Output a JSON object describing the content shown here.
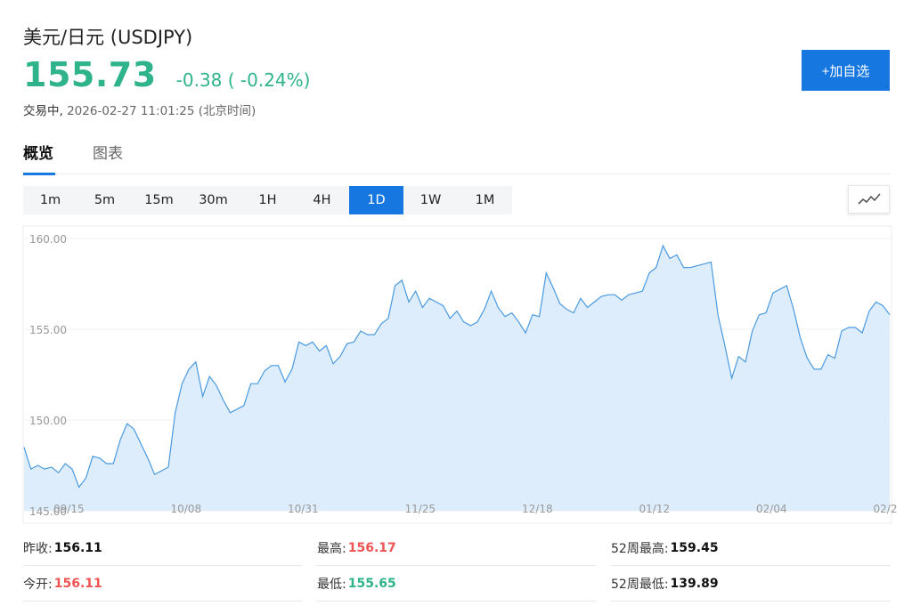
{
  "header": {
    "title": "美元/日元 (USDJPY)",
    "price": "155.73",
    "change": "-0.38 ( -0.24%)",
    "state": "交易中,",
    "timestamp": "2026-02-27 11:01:25 (北京时间)"
  },
  "actions": {
    "add_watchlist": "+加自选"
  },
  "tabs": [
    {
      "label": "概览",
      "active": true
    },
    {
      "label": "图表",
      "active": false
    }
  ],
  "periods": [
    {
      "label": "1m",
      "active": false
    },
    {
      "label": "5m",
      "active": false
    },
    {
      "label": "15m",
      "active": false
    },
    {
      "label": "30m",
      "active": false
    },
    {
      "label": "1H",
      "active": false
    },
    {
      "label": "4H",
      "active": false
    },
    {
      "label": "1D",
      "active": true
    },
    {
      "label": "1W",
      "active": false
    },
    {
      "label": "1M",
      "active": false
    }
  ],
  "chart_toggle_icon": "line-chart-icon",
  "colors": {
    "accent": "#1677e0",
    "down": "#2fb38a",
    "up": "#ee5454",
    "line": "#4a9ae0",
    "fill": "#deedfb"
  },
  "chart_data": {
    "type": "area",
    "ylim": [
      145,
      160
    ],
    "y_ticks": [
      "160.00",
      "155.00",
      "150.00",
      "145.00"
    ],
    "x_ticks": [
      "09/15",
      "10/08",
      "10/31",
      "11/25",
      "12/18",
      "01/12",
      "02/04",
      "02/2"
    ],
    "values": [
      148.5,
      147.3,
      147.5,
      147.3,
      147.4,
      147.1,
      147.6,
      147.3,
      146.3,
      146.8,
      148.0,
      147.9,
      147.6,
      147.6,
      148.9,
      149.8,
      149.5,
      148.7,
      147.9,
      147.0,
      147.2,
      147.4,
      150.4,
      152.0,
      152.8,
      153.2,
      151.3,
      152.4,
      151.9,
      151.1,
      150.4,
      150.6,
      150.8,
      152.0,
      152.0,
      152.7,
      153.0,
      153.0,
      152.1,
      152.8,
      154.3,
      154.1,
      154.3,
      153.8,
      154.1,
      153.1,
      153.5,
      154.2,
      154.3,
      154.9,
      154.7,
      154.7,
      155.3,
      155.6,
      157.4,
      157.7,
      156.5,
      157.1,
      156.2,
      156.7,
      156.5,
      156.3,
      155.6,
      156.0,
      155.4,
      155.2,
      155.4,
      156.1,
      157.1,
      156.2,
      155.7,
      155.9,
      155.4,
      154.8,
      155.8,
      155.7,
      158.1,
      157.3,
      156.4,
      156.1,
      155.9,
      156.7,
      156.2,
      156.5,
      156.8,
      156.9,
      156.9,
      156.6,
      156.9,
      157.0,
      157.1,
      158.1,
      158.4,
      159.6,
      158.9,
      159.1,
      158.4,
      158.4,
      158.5,
      158.6,
      158.7,
      155.8,
      154.1,
      152.3,
      153.5,
      153.2,
      154.9,
      155.8,
      155.9,
      157.0,
      157.2,
      157.4,
      156.1,
      154.5,
      153.4,
      152.8,
      152.8,
      153.6,
      153.4,
      154.9,
      155.1,
      155.1,
      154.8,
      156.0,
      156.5,
      156.3,
      155.8
    ]
  },
  "stats": [
    [
      {
        "label": "昨收:",
        "value": "156.11",
        "tone": "neutral"
      },
      {
        "label": "最高:",
        "value": "156.17",
        "tone": "up"
      },
      {
        "label": "52周最高:",
        "value": "159.45",
        "tone": "neutral"
      }
    ],
    [
      {
        "label": "今开:",
        "value": "156.11",
        "tone": "up"
      },
      {
        "label": "最低:",
        "value": "155.65",
        "tone": "down"
      },
      {
        "label": "52周最低:",
        "value": "139.89",
        "tone": "neutral"
      }
    ]
  ]
}
